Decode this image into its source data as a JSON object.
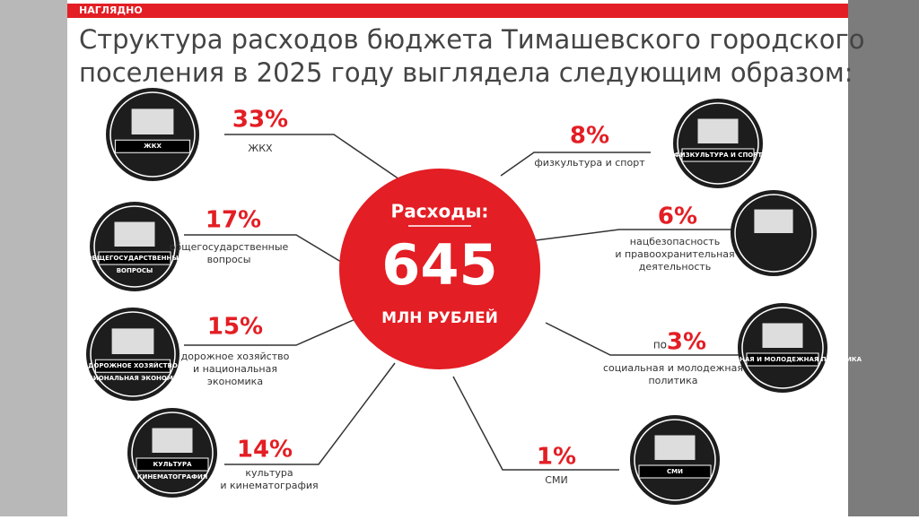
{
  "header": {
    "tag": "НАГЛЯДНО"
  },
  "title": [
    "Структура расходов бюджета Тимашевского городского",
    "поселения в 2025 году выглядела следующим образом:"
  ],
  "center": {
    "label": "Расходы:",
    "value": "645",
    "unit": "МЛН РУБЛЕЙ"
  },
  "items": [
    {
      "percent": "33%",
      "lines": [
        "ЖКХ"
      ],
      "icon_text": [
        "ЖКХ"
      ]
    },
    {
      "percent": "17%",
      "lines": [
        "общегосударственные",
        "вопросы"
      ],
      "icon_text": [
        "ОБЩЕГОСУДАРСТВЕННЫЕ",
        "ВОПРОСЫ"
      ]
    },
    {
      "percent": "15%",
      "lines": [
        "дорожное хозяйство",
        "и национальная",
        "экономика"
      ],
      "icon_text": [
        "ДОРОЖНОЕ ХОЗЯЙСТВО",
        "НАЦИОНАЛЬНАЯ ЭКОНОМИКА"
      ]
    },
    {
      "percent": "14%",
      "lines": [
        "культура",
        "и кинематография"
      ],
      "icon_text": [
        "КУЛЬТУРА",
        "КИНЕМАТОГРАФИЯ"
      ]
    },
    {
      "percent": "8%",
      "lines": [
        "физкультура и спорт"
      ],
      "icon_text": [
        "ФИЗКУЛЬТУРА И СПОРТ"
      ]
    },
    {
      "percent": "6%",
      "lines": [
        "нацбезопасность",
        "и правоохранительная",
        "деятельность"
      ],
      "icon_text": []
    },
    {
      "prefix": "по",
      "percent": "3%",
      "lines": [
        "социальная и молодежная",
        "политика"
      ],
      "icon_text": [
        "СОЦИАЛЬНАЯ И МОЛОДЕЖНАЯ ПОЛИТИКА"
      ]
    },
    {
      "percent": "1%",
      "lines": [
        "СМИ"
      ],
      "icon_text": [
        "СМИ"
      ]
    }
  ]
}
